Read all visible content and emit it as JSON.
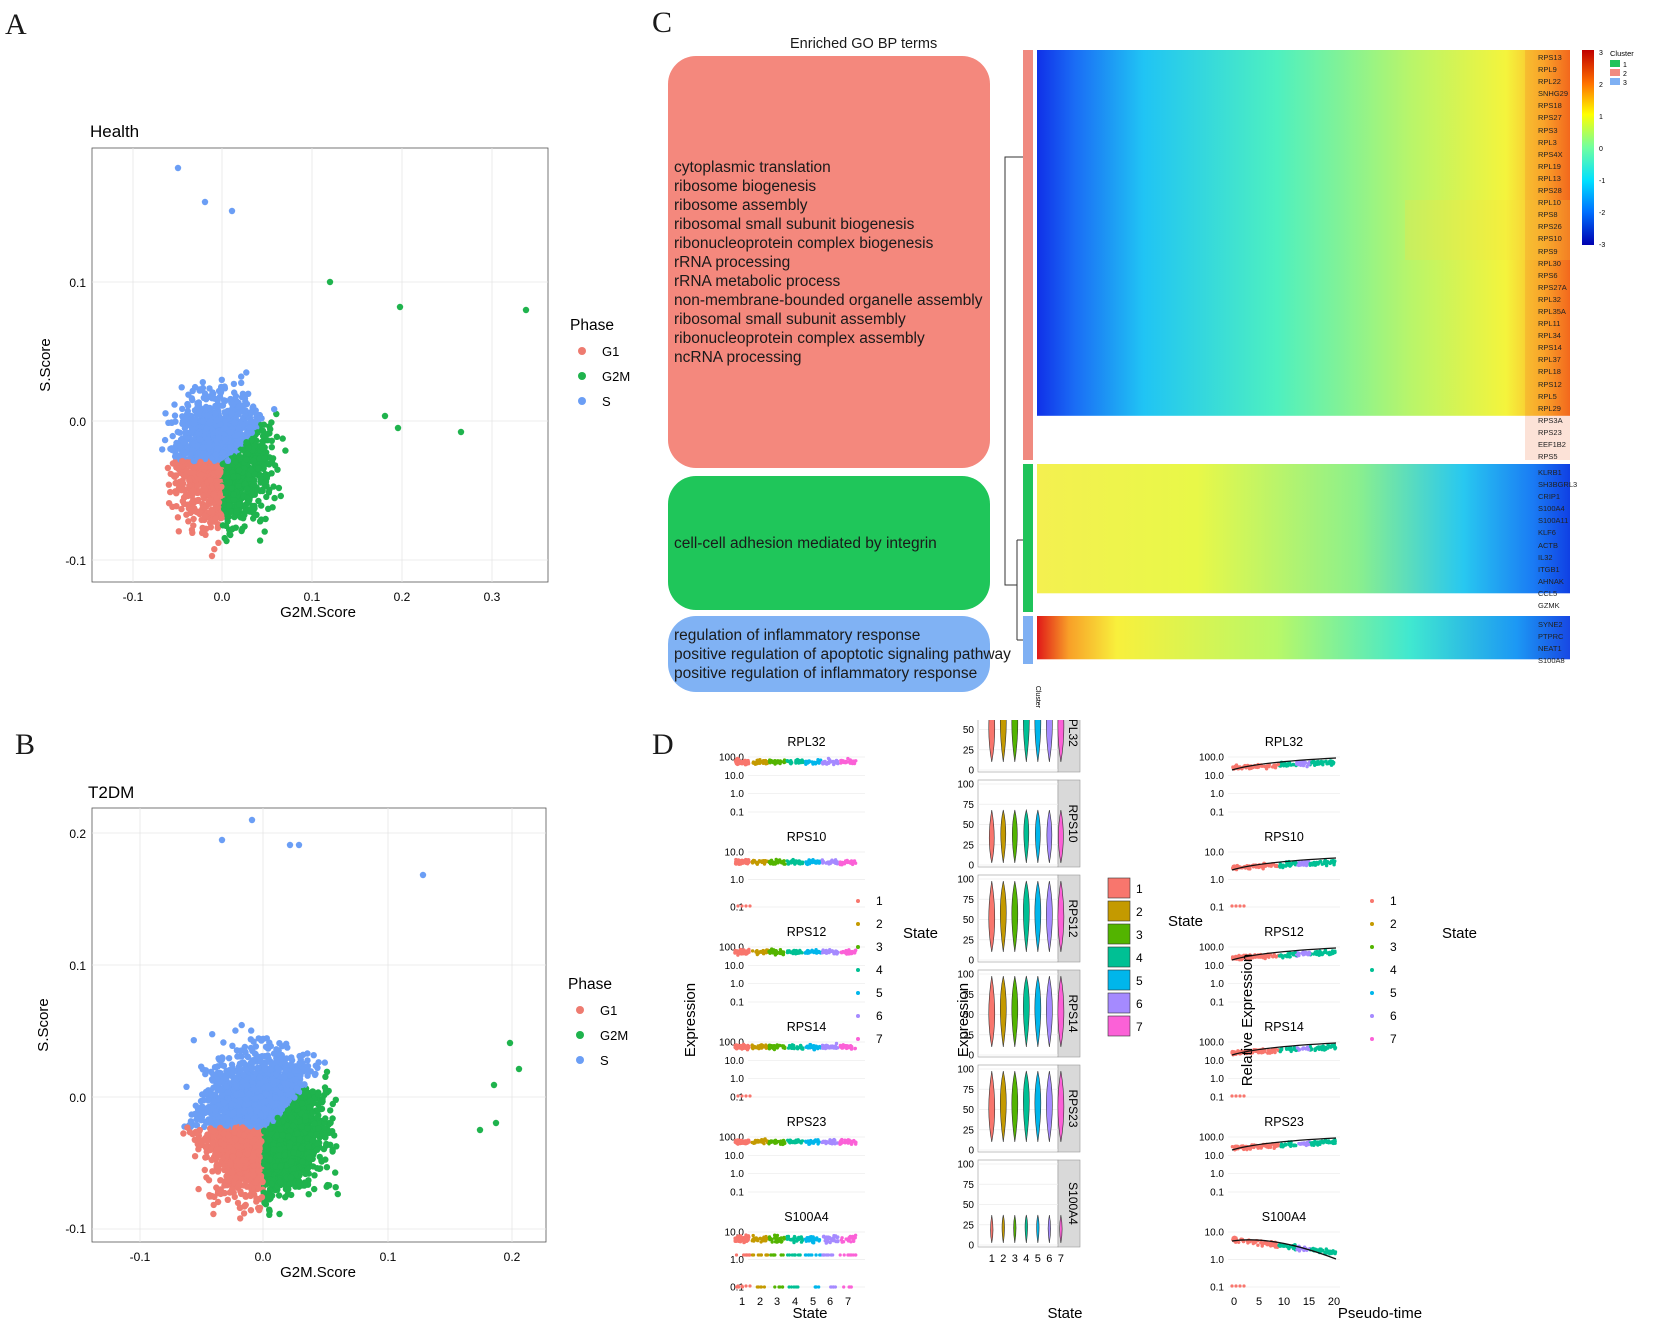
{
  "panels": {
    "a": "A",
    "b": "B",
    "c": "C",
    "d": "D"
  },
  "scatter_a": {
    "title": "Health",
    "xlabel": "G2M.Score",
    "ylabel": "S.Score",
    "xticks": [
      "-0.1",
      "0.0",
      "0.1",
      "0.2",
      "0.3"
    ],
    "yticks": [
      "0.1",
      "0.0",
      "-0.1"
    ],
    "legend_title": "Phase",
    "legend": [
      "G1",
      "G2M",
      "S"
    ]
  },
  "scatter_b": {
    "title": "T2DM",
    "xlabel": "G2M.Score",
    "ylabel": "S.Score",
    "xticks": [
      "-0.1",
      "0.0",
      "0.1",
      "0.2"
    ],
    "yticks": [
      "0.2",
      "0.1",
      "0.0",
      "-0.1"
    ],
    "legend_title": "Phase",
    "legend": [
      "G1",
      "G2M",
      "S"
    ]
  },
  "heatmap": {
    "title": "Enriched GO BP terms",
    "go_terms_1": [
      "cytoplasmic translation",
      "ribosome biogenesis",
      "ribosome assembly",
      "ribosomal small subunit biogenesis",
      "ribonucleoprotein complex biogenesis",
      "rRNA processing",
      "rRNA metabolic process",
      "non-membrane-bounded organelle assembly",
      "ribosomal small subunit assembly",
      "ribonucleoprotein complex assembly",
      "ncRNA processing"
    ],
    "go_terms_2": [
      "cell-cell adhesion mediated by integrin"
    ],
    "go_terms_3": [
      "regulation of inflammatory response",
      "positive regulation of apoptotic signaling pathway",
      "positive regulation of inflammatory response"
    ],
    "genes_1": [
      "RPS13",
      "RPL9",
      "RPL22",
      "SNHG29",
      "RPS18",
      "RPS27",
      "RPS3",
      "RPL3",
      "RPS4X",
      "RPL19",
      "RPL13",
      "RPS28",
      "RPL10",
      "RPS8",
      "RPS26",
      "RPS10",
      "RPS9",
      "RPL30",
      "RPS6",
      "RPS27A",
      "RPL32",
      "RPL35A",
      "RPL11",
      "RPL34",
      "RPS14",
      "RPL37",
      "RPL18",
      "RPS12",
      "RPL5",
      "RPL29",
      "RPS3A",
      "RPS23",
      "EEF1B2",
      "RPS5"
    ],
    "genes_2": [
      "KLRB1",
      "SH3BGRL3",
      "CRIP1",
      "S100A4",
      "S100A11",
      "KLF6",
      "ACTB",
      "IL32",
      "ITGB1",
      "AHNAK",
      "CCL5",
      "GZMK"
    ],
    "genes_3": [
      "SYNE2",
      "PTPRC",
      "NEAT1",
      "S100A8"
    ],
    "scale_labels": [
      "3",
      "2",
      "1",
      "0",
      "-1",
      "-2",
      "-3"
    ],
    "cluster_title": "Cluster",
    "cluster_labels": [
      "1",
      "2",
      "3"
    ],
    "cluster_axis": "Cluster"
  },
  "panel_d": {
    "genes": [
      "RPL32",
      "RPS10",
      "RPS12",
      "RPS14",
      "RPS23",
      "S100A4"
    ],
    "ylabel_left": "Expression",
    "xlabel_left": "State",
    "ylabel_mid": "Expression",
    "xlabel_mid": "State",
    "ylabel_right": "Relative Expression",
    "xlabel_right": "Pseudo-time",
    "state_ticks": [
      "1",
      "2",
      "3",
      "4",
      "5",
      "6",
      "7"
    ],
    "pseudo_ticks": [
      "0",
      "5",
      "10",
      "15",
      "20"
    ],
    "log_ticks_4": [
      "100.0",
      "10.0",
      "1.0",
      "0.1"
    ],
    "log_ticks_3": [
      "10.0",
      "1.0",
      "0.1"
    ],
    "violin_ticks": [
      "100",
      "75",
      "50",
      "25",
      "0"
    ],
    "state_legend_title": "State",
    "state_legend": [
      "1",
      "2",
      "3",
      "4",
      "5",
      "6",
      "7"
    ]
  },
  "colors": {
    "g1": "#ee7b70",
    "g2m": "#1fb34d",
    "s": "#6b9ef5",
    "cluster1": "#1fc35a",
    "cluster2": "#f08a80",
    "cluster3": "#7fb0f3",
    "states": [
      "#f8766d",
      "#c49a00",
      "#53b400",
      "#00c094",
      "#00b6eb",
      "#a58aff",
      "#fb61d7"
    ]
  }
}
